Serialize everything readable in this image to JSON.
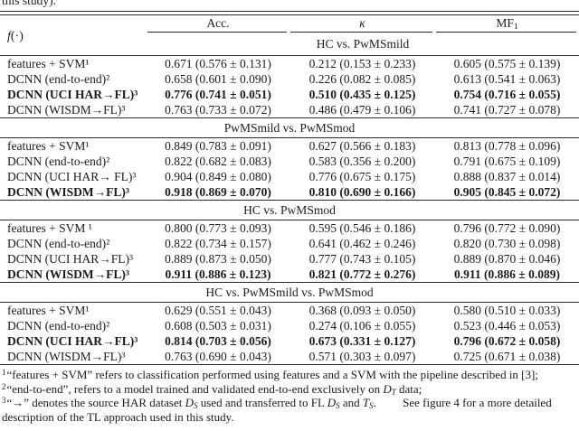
{
  "caption_remnant": "this study).",
  "table": {
    "corner": {
      "f": "f",
      "args": "(·)"
    },
    "metric_headers": [
      {
        "text": "Acc."
      },
      {
        "text": "κ"
      },
      {
        "text": "MF",
        "sub": "1"
      }
    ],
    "sections": [
      {
        "title": "HC vs. PwMSmild",
        "rows": [
          {
            "label": "features + SVM¹",
            "bold": false,
            "values": [
              "0.671 (0.576 ± 0.131)",
              "0.212 (0.153 ± 0.233)",
              "0.605 (0.575 ± 0.139)"
            ]
          },
          {
            "label": "DCNN (end-to-end)²",
            "bold": false,
            "values": [
              "0.658 (0.601 ± 0.090)",
              "0.226 (0.082 ± 0.085)",
              "0.613 (0.541 ± 0.063)"
            ]
          },
          {
            "label": "DCNN (UCI HAR→FL)³",
            "bold": true,
            "values": [
              "0.776 (0.741 ± 0.051)",
              "0.510 (0.435 ± 0.125)",
              "0.754 (0.716 ± 0.055)"
            ]
          },
          {
            "label": "DCNN (WISDM→FL)³",
            "bold": false,
            "values": [
              "0.763 (0.733 ± 0.072)",
              "0.486 (0.479 ± 0.106)",
              "0.741 (0.727 ± 0.078)"
            ]
          }
        ]
      },
      {
        "title": "PwMSmild vs. PwMSmod",
        "rows": [
          {
            "label": "features + SVM¹",
            "bold": false,
            "values": [
              "0.849 (0.783 ± 0.091)",
              "0.627 (0.566 ± 0.183)",
              "0.813 (0.778 ± 0.096)"
            ]
          },
          {
            "label": "DCNN (end-to-end)²",
            "bold": false,
            "values": [
              "0.822 (0.682 ± 0.083)",
              "0.583 (0.356 ± 0.200)",
              "0.791 (0.675 ± 0.109)"
            ]
          },
          {
            "label": "DCNN (UCI HAR→ FL)³",
            "bold": false,
            "values": [
              "0.904 (0.849 ± 0.080)",
              "0.776 (0.675 ± 0.175)",
              "0.888 (0.837 ± 0.014)"
            ]
          },
          {
            "label": "DCNN (WISDM→FL)³",
            "bold": true,
            "values": [
              "0.918 (0.869 ± 0.070)",
              "0.810 (0.690 ± 0.166)",
              "0.905 (0.845 ± 0.072)"
            ]
          }
        ]
      },
      {
        "title": "HC vs. PwMSmod",
        "rows": [
          {
            "label": "features + SVM ¹",
            "bold": false,
            "values": [
              "0.800 (0.773 ± 0.093)",
              "0.595 (0.546 ± 0.186)",
              "0.796 (0.772 ± 0.090)"
            ]
          },
          {
            "label": "DCNN (end-to-end)²",
            "bold": false,
            "values": [
              "0.822 (0.734 ± 0.157)",
              "0.641 (0.462 ± 0.246)",
              "0.820 (0.730 ± 0.098)"
            ]
          },
          {
            "label": "DCNN (UCI HAR→FL)³",
            "bold": false,
            "values": [
              "0.889 (0.873 ± 0.050)",
              "0.777 (0.743 ± 0.105)",
              "0.889 (0.870 ± 0.046)"
            ]
          },
          {
            "label": "DCNN (WISDM→FL)³",
            "bold": true,
            "values": [
              "0.911 (0.886 ± 0.123)",
              "0.821 (0.772 ± 0.276)",
              "0.911 (0.886 ± 0.089)"
            ]
          }
        ]
      },
      {
        "title": "HC vs. PwMSmild vs. PwMSmod",
        "rows": [
          {
            "label": "features + SVM¹",
            "bold": false,
            "values": [
              "0.629 (0.551 ± 0.043)",
              "0.368 (0.093 ± 0.050)",
              "0.580 (0.510 ± 0.033)"
            ]
          },
          {
            "label": "DCNN (end-to-end)²",
            "bold": false,
            "values": [
              "0.608 (0.503 ± 0.031)",
              "0.274 (0.106 ± 0.055)",
              "0.523 (0.446 ± 0.053)"
            ]
          },
          {
            "label": "DCNN (UCI HAR→FL)³",
            "bold": true,
            "values": [
              "0.814 (0.703 ± 0.056)",
              "0.673 (0.331 ± 0.127)",
              "0.796 (0.672 ± 0.058)"
            ]
          },
          {
            "label": "DCNN (WISDM→FL)³",
            "bold": false,
            "values": [
              "0.763 (0.690 ± 0.043)",
              "0.571 (0.303 ± 0.097)",
              "0.725 (0.671 ± 0.038)"
            ]
          }
        ]
      }
    ]
  },
  "footnotes": [
    {
      "marker": "1",
      "segments": [
        {
          "t": "“features + SVM” refers to classification performed using features and a SVM with the pipeline described in [3];"
        }
      ]
    },
    {
      "marker": "2",
      "segments": [
        {
          "t": "“end-to-end”, refers to a model trained and validated end-to-end exclusively on "
        },
        {
          "t": "D",
          "cls": "cal"
        },
        {
          "t": "T",
          "cls": "calsub"
        },
        {
          "t": " data;"
        }
      ]
    },
    {
      "marker": "3",
      "segments": [
        {
          "t": "“→” denotes the source HAR dataset "
        },
        {
          "t": "D",
          "cls": "cal"
        },
        {
          "t": "S",
          "cls": "calsub"
        },
        {
          "t": " used and transferred to FL "
        },
        {
          "t": "D",
          "cls": "cal"
        },
        {
          "t": "S",
          "cls": "calsub"
        },
        {
          "t": " and "
        },
        {
          "t": "T",
          "cls": "cal"
        },
        {
          "t": "S",
          "cls": "calsub"
        },
        {
          "t": ". "
        },
        {
          "t": "",
          "cls": "gap"
        },
        {
          "t": "See figure 4 for a more detailed description of the TL approach used in this study."
        }
      ]
    }
  ]
}
